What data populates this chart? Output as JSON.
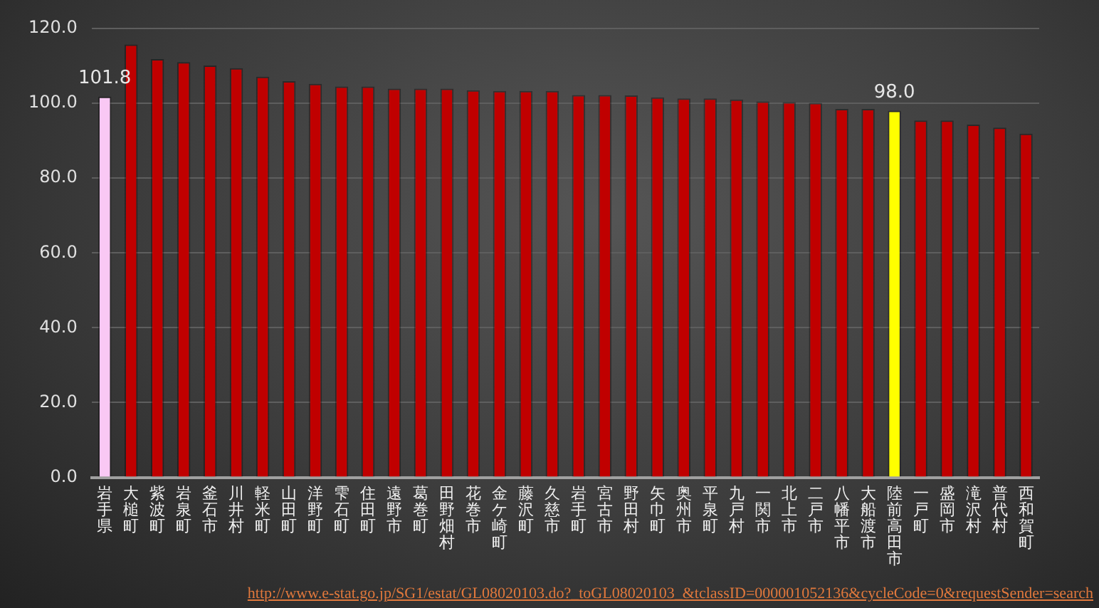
{
  "chart_data": {
    "type": "bar",
    "categories": [
      "岩手県",
      "大槌町",
      "紫波町",
      "岩泉町",
      "釜石市",
      "川井村",
      "軽米町",
      "山田町",
      "洋野町",
      "雫石町",
      "住田町",
      "遠野市",
      "葛巻町",
      "田野畑村",
      "花巻市",
      "金ケ崎町",
      "藤沢町",
      "久慈市",
      "岩手町",
      "宮古市",
      "野田村",
      "矢巾町",
      "奥州市",
      "平泉町",
      "九戸村",
      "一関市",
      "北上市",
      "二戸市",
      "八幡平市",
      "大船渡市",
      "陸前高田市",
      "一戸町",
      "盛岡市",
      "滝沢村",
      "普代村",
      "西和賀町"
    ],
    "values": [
      101.8,
      115.7,
      111.8,
      111.0,
      110.1,
      109.4,
      107.1,
      105.9,
      105.2,
      104.5,
      104.5,
      103.9,
      103.9,
      103.9,
      103.5,
      103.3,
      103.3,
      103.3,
      102.2,
      102.2,
      102.1,
      101.6,
      101.3,
      101.3,
      101.0,
      100.5,
      100.3,
      100.1,
      98.5,
      98.5,
      98.0,
      95.4,
      95.4,
      94.3,
      93.5,
      91.9
    ],
    "colors": [
      "#f9c8f4",
      "#c00000",
      "#c00000",
      "#c00000",
      "#c00000",
      "#c00000",
      "#c00000",
      "#c00000",
      "#c00000",
      "#c00000",
      "#c00000",
      "#c00000",
      "#c00000",
      "#c00000",
      "#c00000",
      "#c00000",
      "#c00000",
      "#c00000",
      "#c00000",
      "#c00000",
      "#c00000",
      "#c00000",
      "#c00000",
      "#c00000",
      "#c00000",
      "#c00000",
      "#c00000",
      "#c00000",
      "#c00000",
      "#c00000",
      "#ffff00",
      "#c00000",
      "#c00000",
      "#c00000",
      "#c00000",
      "#c00000"
    ],
    "value_labels": [
      "101.8",
      null,
      null,
      null,
      null,
      null,
      null,
      null,
      null,
      null,
      null,
      null,
      null,
      null,
      null,
      null,
      null,
      null,
      null,
      null,
      null,
      null,
      null,
      null,
      null,
      null,
      null,
      null,
      null,
      null,
      "98.0",
      null,
      null,
      null,
      null,
      null
    ],
    "ylim": [
      0,
      120
    ],
    "yticks": [
      {
        "value": 0,
        "label": "0.0"
      },
      {
        "value": 20,
        "label": "20.0"
      },
      {
        "value": 40,
        "label": "40.0"
      },
      {
        "value": 60,
        "label": "60.0"
      },
      {
        "value": 80,
        "label": "80.0"
      },
      {
        "value": 100,
        "label": "100.0"
      },
      {
        "value": 120,
        "label": "120.0"
      }
    ],
    "grid": "y",
    "legend": false,
    "annotations": [
      "http://www.e-stat.go.jp/SG1/estat/GL08020103.do?_toGL08020103_&tclassID=000001052136&cycleCode=0&requestSender=search"
    ]
  }
}
